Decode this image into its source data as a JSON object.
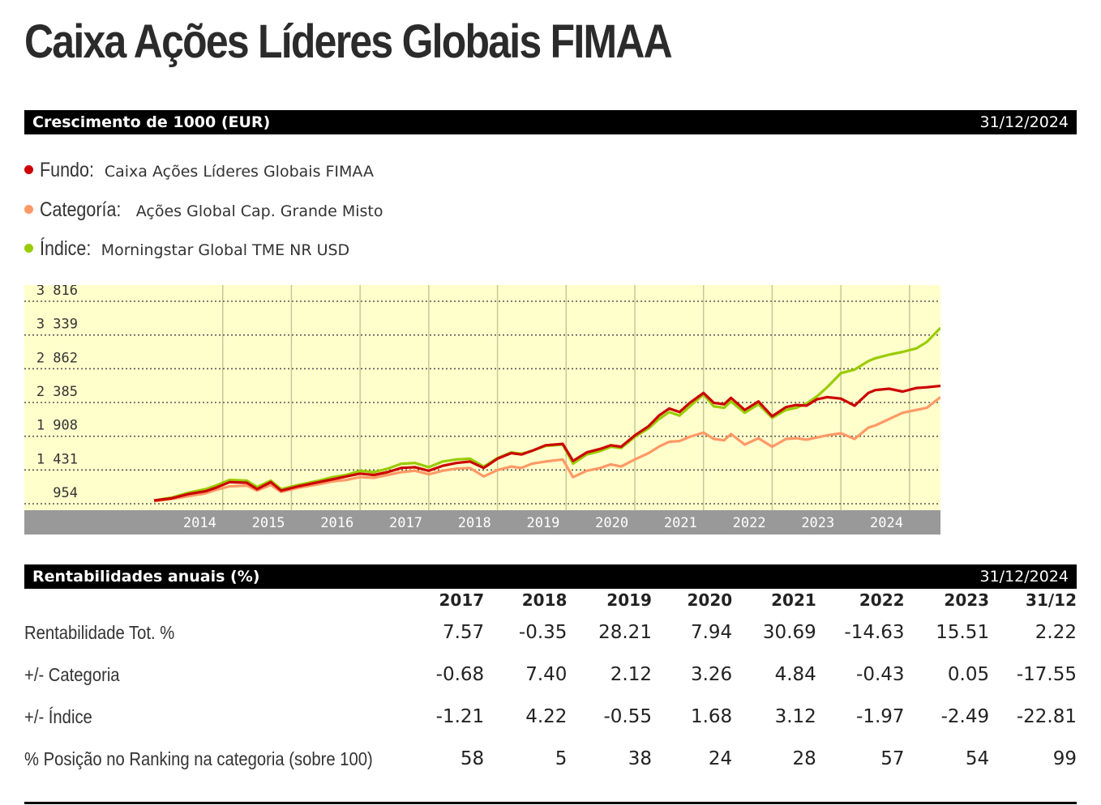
{
  "page_title": "Caixa Ações Líderes Globais FIMAA",
  "growth_section": {
    "title": "Crescimento de 1000 (EUR)",
    "date": "31/12/2024"
  },
  "legend": [
    {
      "label": "Fundo:",
      "value": "Caixa Ações Líderes Globais FIMAA",
      "color": "#cc0000"
    },
    {
      "label": "Categoría:",
      "value": "Ações Global Cap. Grande Misto",
      "color": "#ff9966"
    },
    {
      "label": "Índice:",
      "value": "Morningstar Global TME NR USD",
      "color": "#99cc00"
    }
  ],
  "chart_data": {
    "type": "line",
    "y_ticks": [
      "3 816",
      "3 339",
      "2 862",
      "2 385",
      "1 908",
      "1 431",
      "954"
    ],
    "y_tick_values": [
      3816,
      3339,
      2862,
      2385,
      1908,
      1431,
      954
    ],
    "x_ticks": [
      "2014",
      "2015",
      "2016",
      "2017",
      "2018",
      "2019",
      "2020",
      "2021",
      "2022",
      "2023",
      "2024"
    ],
    "x_range": [
      2013.5,
      2024.95
    ],
    "ylim": [
      900,
      4050
    ],
    "grid": true,
    "plot_background": "#ffffcc",
    "axis_band_color": "#999999",
    "series": [
      {
        "name": "Fundo",
        "color": "#cc0000",
        "x": [
          2013.5,
          2013.75,
          2014.0,
          2014.25,
          2014.4,
          2014.6,
          2014.85,
          2015.0,
          2015.2,
          2015.35,
          2015.6,
          2015.9,
          2016.1,
          2016.3,
          2016.5,
          2016.7,
          2016.9,
          2017.1,
          2017.3,
          2017.5,
          2017.7,
          2017.9,
          2018.1,
          2018.3,
          2018.5,
          2018.7,
          2018.85,
          2019.0,
          2019.2,
          2019.45,
          2019.6,
          2019.8,
          2020.0,
          2020.15,
          2020.3,
          2020.5,
          2020.7,
          2020.85,
          2021.0,
          2021.15,
          2021.3,
          2021.5,
          2021.65,
          2021.8,
          2021.9,
          2022.1,
          2022.3,
          2022.5,
          2022.7,
          2022.85,
          2023.0,
          2023.15,
          2023.3,
          2023.5,
          2023.7,
          2023.9,
          2024.0,
          2024.2,
          2024.4,
          2024.6,
          2024.75,
          2024.95
        ],
        "y": [
          1000,
          1030,
          1090,
          1130,
          1180,
          1260,
          1250,
          1160,
          1260,
          1140,
          1200,
          1260,
          1300,
          1340,
          1380,
          1360,
          1400,
          1460,
          1470,
          1420,
          1490,
          1530,
          1550,
          1460,
          1590,
          1670,
          1650,
          1700,
          1780,
          1800,
          1560,
          1680,
          1730,
          1780,
          1760,
          1920,
          2050,
          2200,
          2300,
          2250,
          2380,
          2520,
          2380,
          2360,
          2450,
          2280,
          2400,
          2190,
          2320,
          2350,
          2340,
          2430,
          2460,
          2440,
          2340,
          2520,
          2560,
          2580,
          2540,
          2590,
          2600,
          2620
        ]
      },
      {
        "name": "Categoría",
        "color": "#ff9966",
        "x": [
          2013.5,
          2013.75,
          2014.0,
          2014.25,
          2014.4,
          2014.6,
          2014.85,
          2015.0,
          2015.2,
          2015.35,
          2015.6,
          2015.9,
          2016.1,
          2016.3,
          2016.5,
          2016.7,
          2016.9,
          2017.1,
          2017.3,
          2017.5,
          2017.7,
          2017.9,
          2018.1,
          2018.3,
          2018.5,
          2018.7,
          2018.85,
          2019.0,
          2019.2,
          2019.45,
          2019.6,
          2019.8,
          2020.0,
          2020.15,
          2020.3,
          2020.5,
          2020.7,
          2020.85,
          2021.0,
          2021.15,
          2021.3,
          2021.5,
          2021.65,
          2021.8,
          2021.9,
          2022.1,
          2022.3,
          2022.5,
          2022.7,
          2022.85,
          2023.0,
          2023.15,
          2023.3,
          2023.5,
          2023.7,
          2023.9,
          2024.0,
          2024.2,
          2024.4,
          2024.6,
          2024.75,
          2024.95
        ],
        "y": [
          990,
          1020,
          1060,
          1100,
          1150,
          1200,
          1210,
          1140,
          1220,
          1120,
          1180,
          1230,
          1270,
          1290,
          1330,
          1320,
          1360,
          1400,
          1420,
          1370,
          1420,
          1450,
          1460,
          1340,
          1430,
          1480,
          1460,
          1520,
          1550,
          1580,
          1330,
          1420,
          1460,
          1510,
          1480,
          1580,
          1670,
          1760,
          1830,
          1840,
          1900,
          1960,
          1870,
          1850,
          1940,
          1790,
          1880,
          1760,
          1870,
          1880,
          1860,
          1890,
          1920,
          1950,
          1870,
          2030,
          2060,
          2150,
          2240,
          2280,
          2310,
          2460
        ]
      },
      {
        "name": "Índice",
        "color": "#99cc00",
        "x": [
          2013.5,
          2013.75,
          2014.0,
          2014.25,
          2014.4,
          2014.6,
          2014.85,
          2015.0,
          2015.2,
          2015.35,
          2015.6,
          2015.9,
          2016.1,
          2016.3,
          2016.5,
          2016.7,
          2016.9,
          2017.1,
          2017.3,
          2017.5,
          2017.7,
          2017.9,
          2018.1,
          2018.3,
          2018.5,
          2018.7,
          2018.85,
          2019.0,
          2019.2,
          2019.45,
          2019.6,
          2019.8,
          2020.0,
          2020.15,
          2020.3,
          2020.5,
          2020.7,
          2020.85,
          2021.0,
          2021.15,
          2021.3,
          2021.5,
          2021.65,
          2021.8,
          2021.9,
          2022.1,
          2022.3,
          2022.5,
          2022.7,
          2022.85,
          2023.0,
          2023.15,
          2023.3,
          2023.5,
          2023.7,
          2023.9,
          2024.0,
          2024.2,
          2024.4,
          2024.6,
          2024.75,
          2024.95
        ],
        "y": [
          1000,
          1040,
          1110,
          1160,
          1210,
          1290,
          1280,
          1190,
          1280,
          1160,
          1220,
          1280,
          1330,
          1360,
          1420,
          1400,
          1450,
          1520,
          1530,
          1470,
          1550,
          1580,
          1590,
          1480,
          1600,
          1680,
          1660,
          1700,
          1770,
          1790,
          1520,
          1650,
          1700,
          1760,
          1740,
          1900,
          2020,
          2150,
          2250,
          2200,
          2330,
          2500,
          2330,
          2310,
          2400,
          2240,
          2360,
          2170,
          2280,
          2310,
          2370,
          2470,
          2600,
          2800,
          2850,
          2970,
          3010,
          3060,
          3100,
          3150,
          3240,
          3440
        ]
      }
    ]
  },
  "annual_section": {
    "title": "Rentabilidades anuais (%)",
    "date": "31/12/2024"
  },
  "annual_table": {
    "columns": [
      "2017",
      "2018",
      "2019",
      "2020",
      "2021",
      "2022",
      "2023",
      "31/12"
    ],
    "rows": [
      {
        "label": "Rentabilidade Tot. %",
        "values": [
          "7.57",
          "-0.35",
          "28.21",
          "7.94",
          "30.69",
          "-14.63",
          "15.51",
          "2.22"
        ]
      },
      {
        "label": "+/- Categoria",
        "values": [
          "-0.68",
          "7.40",
          "2.12",
          "3.26",
          "4.84",
          "-0.43",
          "0.05",
          "-17.55"
        ]
      },
      {
        "label": "+/- Índice",
        "values": [
          "-1.21",
          "4.22",
          "-0.55",
          "1.68",
          "3.12",
          "-1.97",
          "-2.49",
          "-22.81"
        ]
      },
      {
        "label": "% Posição no Ranking na categoria (sobre 100)",
        "values": [
          "58",
          "5",
          "38",
          "24",
          "28",
          "57",
          "54",
          "99"
        ]
      }
    ]
  }
}
